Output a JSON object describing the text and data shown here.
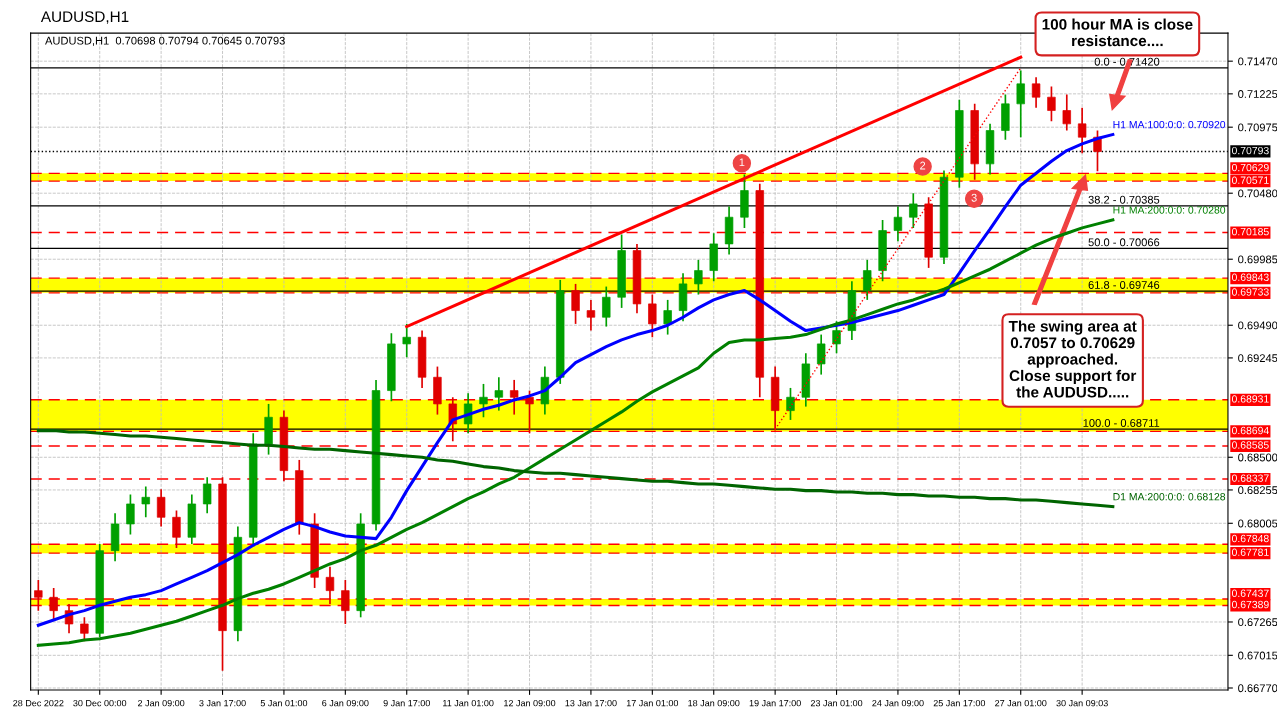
{
  "chart_data": {
    "type": "candlestick",
    "title": "AUDUSD,H1",
    "subtitle": "AUDUSD,H1  0.70698 0.70794 0.70645 0.70793",
    "categories": [
      "28 Dec 2022",
      null,
      null,
      null,
      "30 Dec 00:00",
      null,
      null,
      null,
      "2 Jan 09:00",
      null,
      null,
      null,
      "3 Jan 17:00",
      null,
      null,
      null,
      "5 Jan 01:00",
      null,
      null,
      null,
      "6 Jan 09:00",
      null,
      null,
      null,
      "9 Jan 17:00",
      null,
      null,
      null,
      "11 Jan 01:00",
      null,
      null,
      null,
      "12 Jan 09:00",
      null,
      null,
      null,
      "13 Jan 17:00",
      null,
      null,
      null,
      "17 Jan 01:00",
      null,
      null,
      null,
      "18 Jan 09:00",
      null,
      null,
      null,
      "19 Jan 17:00",
      null,
      null,
      null,
      "23 Jan 01:00",
      null,
      null,
      null,
      "24 Jan 09:00",
      null,
      null,
      null,
      "25 Jan 17:00",
      null,
      null,
      null,
      "27 Jan 01:00",
      null,
      null,
      null,
      "30 Jan 09:03",
      null,
      null,
      null,
      null,
      null,
      null,
      null,
      null,
      null
    ],
    "ohlc": [
      [
        0.675,
        0.6758,
        0.6735,
        0.6745
      ],
      [
        0.6745,
        0.6752,
        0.6728,
        0.6735
      ],
      [
        0.6735,
        0.674,
        0.6718,
        0.6725
      ],
      [
        0.6725,
        0.673,
        0.6712,
        0.6718
      ],
      [
        0.6718,
        0.6785,
        0.6715,
        0.678
      ],
      [
        0.678,
        0.6808,
        0.6772,
        0.68
      ],
      [
        0.68,
        0.6822,
        0.6792,
        0.6815
      ],
      [
        0.6815,
        0.6828,
        0.6805,
        0.682
      ],
      [
        0.682,
        0.6826,
        0.6798,
        0.6805
      ],
      [
        0.6805,
        0.681,
        0.6782,
        0.679
      ],
      [
        0.679,
        0.6822,
        0.6785,
        0.6815
      ],
      [
        0.6815,
        0.6835,
        0.6808,
        0.683
      ],
      [
        0.683,
        0.6835,
        0.669,
        0.672
      ],
      [
        0.672,
        0.6798,
        0.6712,
        0.679
      ],
      [
        0.679,
        0.6868,
        0.6785,
        0.686
      ],
      [
        0.686,
        0.689,
        0.6852,
        0.688
      ],
      [
        0.688,
        0.6885,
        0.6832,
        0.684
      ],
      [
        0.684,
        0.6848,
        0.6792,
        0.68
      ],
      [
        0.68,
        0.6808,
        0.6752,
        0.676
      ],
      [
        0.676,
        0.6768,
        0.674,
        0.675
      ],
      [
        0.675,
        0.6758,
        0.6725,
        0.6735
      ],
      [
        0.6735,
        0.6808,
        0.673,
        0.68
      ],
      [
        0.68,
        0.6908,
        0.6795,
        0.69
      ],
      [
        0.69,
        0.6943,
        0.6892,
        0.6935
      ],
      [
        0.6935,
        0.695,
        0.6925,
        0.694
      ],
      [
        0.694,
        0.6945,
        0.6902,
        0.691
      ],
      [
        0.691,
        0.6918,
        0.6882,
        0.689
      ],
      [
        0.689,
        0.6895,
        0.6862,
        0.6875
      ],
      [
        0.6875,
        0.6898,
        0.6868,
        0.689
      ],
      [
        0.689,
        0.6905,
        0.688,
        0.6895
      ],
      [
        0.6895,
        0.691,
        0.6885,
        0.69
      ],
      [
        0.69,
        0.6908,
        0.6882,
        0.6895
      ],
      [
        0.6895,
        0.69,
        0.6868,
        0.689
      ],
      [
        0.689,
        0.6918,
        0.6882,
        0.691
      ],
      [
        0.691,
        0.6983,
        0.6905,
        0.6975
      ],
      [
        0.6975,
        0.698,
        0.695,
        0.696
      ],
      [
        0.696,
        0.6968,
        0.6945,
        0.6955
      ],
      [
        0.6955,
        0.6978,
        0.6948,
        0.697
      ],
      [
        0.697,
        0.7017,
        0.6962,
        0.7005
      ],
      [
        0.7005,
        0.701,
        0.6958,
        0.6965
      ],
      [
        0.6965,
        0.6972,
        0.694,
        0.695
      ],
      [
        0.695,
        0.6968,
        0.6942,
        0.696
      ],
      [
        0.696,
        0.6988,
        0.6952,
        0.698
      ],
      [
        0.698,
        0.6998,
        0.6972,
        0.699
      ],
      [
        0.699,
        0.7018,
        0.6982,
        0.701
      ],
      [
        0.701,
        0.7038,
        0.7002,
        0.703
      ],
      [
        0.703,
        0.7062,
        0.7022,
        0.705
      ],
      [
        0.705,
        0.7055,
        0.6895,
        0.691
      ],
      [
        0.691,
        0.6918,
        0.687,
        0.6885
      ],
      [
        0.6885,
        0.6902,
        0.6878,
        0.6895
      ],
      [
        0.6895,
        0.6928,
        0.6888,
        0.692
      ],
      [
        0.692,
        0.6942,
        0.6912,
        0.6935
      ],
      [
        0.6935,
        0.6952,
        0.6928,
        0.6945
      ],
      [
        0.6945,
        0.6982,
        0.6938,
        0.6975
      ],
      [
        0.6975,
        0.6998,
        0.6968,
        0.699
      ],
      [
        0.699,
        0.7028,
        0.6982,
        0.702
      ],
      [
        0.702,
        0.7038,
        0.7012,
        0.703
      ],
      [
        0.703,
        0.7048,
        0.7022,
        0.704
      ],
      [
        0.704,
        0.7045,
        0.6992,
        0.7
      ],
      [
        0.7,
        0.7065,
        0.6995,
        0.706
      ],
      [
        0.706,
        0.7118,
        0.7052,
        0.711
      ],
      [
        0.711,
        0.7115,
        0.7058,
        0.707
      ],
      [
        0.707,
        0.71,
        0.7062,
        0.7095
      ],
      [
        0.7095,
        0.7122,
        0.7088,
        0.7115
      ],
      [
        0.7115,
        0.714,
        0.709,
        0.713
      ],
      [
        0.713,
        0.7135,
        0.7112,
        0.712
      ],
      [
        0.712,
        0.7128,
        0.7102,
        0.711
      ],
      [
        0.711,
        0.7122,
        0.7095,
        0.71
      ],
      [
        0.71,
        0.7112,
        0.7078,
        0.709
      ],
      [
        0.709,
        0.7095,
        0.70645,
        0.70793
      ],
      null,
      null,
      null,
      null,
      null,
      null,
      null,
      null
    ],
    "series": [
      {
        "name": "H1 MA:100:0:0: 0.70920",
        "type": "line",
        "color": "#0000ff",
        "values": [
          0.6724,
          0.6728,
          0.6732,
          0.6735,
          0.6739,
          0.6742,
          0.6745,
          0.6747,
          0.675,
          0.6755,
          0.676,
          0.6765,
          0.6771,
          0.6777,
          0.6784,
          0.679,
          0.6796,
          0.6801,
          0.6798,
          0.6794,
          0.6791,
          0.679,
          0.6789,
          0.6805,
          0.6825,
          0.6843,
          0.6861,
          0.6878,
          0.6882,
          0.6886,
          0.6889,
          0.6893,
          0.6896,
          0.69,
          0.691,
          0.6921,
          0.6927,
          0.6933,
          0.6938,
          0.6942,
          0.6945,
          0.6949,
          0.6955,
          0.6962,
          0.6968,
          0.6972,
          0.6975,
          0.6968,
          0.696,
          0.6952,
          0.6945,
          0.6947,
          0.6949,
          0.6951,
          0.6954,
          0.6957,
          0.696,
          0.6964,
          0.6968,
          0.6972,
          0.6988,
          0.7005,
          0.7021,
          0.7038,
          0.7054,
          0.7063,
          0.7072,
          0.708,
          0.7085,
          0.7089,
          0.7092,
          null,
          null,
          null,
          null,
          null,
          null,
          null
        ]
      },
      {
        "name": "H1 MA:200:0:0: 0.70280",
        "type": "line",
        "color": "#008000",
        "values": [
          0.6709,
          0.671,
          0.6711,
          0.6713,
          0.6714,
          0.6716,
          0.6718,
          0.6721,
          0.6724,
          0.6727,
          0.6731,
          0.6735,
          0.6739,
          0.6744,
          0.6748,
          0.6751,
          0.6755,
          0.676,
          0.6765,
          0.677,
          0.6774,
          0.678,
          0.6784,
          0.679,
          0.6796,
          0.6801,
          0.6807,
          0.6813,
          0.6819,
          0.6824,
          0.683,
          0.6835,
          0.6842,
          0.6849,
          0.6856,
          0.6863,
          0.687,
          0.6877,
          0.6884,
          0.6892,
          0.6899,
          0.6905,
          0.6911,
          0.6917,
          0.6928,
          0.6936,
          0.6938,
          0.6938,
          0.6939,
          0.694,
          0.6942,
          0.6946,
          0.695,
          0.6953,
          0.6957,
          0.6961,
          0.6965,
          0.6968,
          0.6972,
          0.6976,
          0.6981,
          0.6986,
          0.6991,
          0.6997,
          0.7003,
          0.7009,
          0.7014,
          0.7018,
          0.7022,
          0.7025,
          0.7028,
          null,
          null,
          null,
          null,
          null,
          null,
          null
        ]
      },
      {
        "name": "D1 MA:200:0:0: 0.68128",
        "type": "line",
        "color": "#006400",
        "values": [
          0.687,
          0.687,
          0.6869,
          0.6869,
          0.6868,
          0.6867,
          0.6866,
          0.6866,
          0.6865,
          0.6864,
          0.6863,
          0.6862,
          0.6861,
          0.686,
          0.6859,
          0.6859,
          0.6858,
          0.6857,
          0.6856,
          0.6856,
          0.6855,
          0.6854,
          0.6853,
          0.6852,
          0.6851,
          0.685,
          0.6848,
          0.6847,
          0.6845,
          0.6843,
          0.6842,
          0.684,
          0.6839,
          0.6838,
          0.6838,
          0.6837,
          0.6836,
          0.6835,
          0.6834,
          0.6833,
          0.6832,
          0.6832,
          0.6831,
          0.683,
          0.683,
          0.6829,
          0.6828,
          0.6827,
          0.6826,
          0.6826,
          0.6825,
          0.6825,
          0.6824,
          0.6824,
          0.6823,
          0.6823,
          0.6822,
          0.6822,
          0.6821,
          0.6821,
          0.682,
          0.682,
          0.6819,
          0.6819,
          0.6818,
          0.6818,
          0.6817,
          0.6816,
          0.6815,
          0.6814,
          0.6813,
          null,
          null,
          null,
          null,
          null,
          null,
          null
        ]
      },
      {
        "type": "line",
        "color": "#ff0000",
        "values": [
          null,
          null,
          null,
          null,
          null,
          null,
          null,
          null,
          null,
          null,
          null,
          null,
          null,
          null,
          null,
          null,
          null,
          null,
          null,
          null,
          null,
          null,
          null,
          null,
          0.6948,
          null,
          null,
          null,
          null,
          null,
          null,
          null,
          null,
          null,
          null,
          null,
          null,
          null,
          null,
          null,
          null,
          null,
          null,
          null,
          null,
          null,
          null,
          null,
          null,
          null,
          null,
          null,
          null,
          null,
          null,
          null,
          null,
          null,
          null,
          null,
          null,
          null,
          null,
          null,
          0.715,
          null,
          null,
          null,
          null,
          null,
          null,
          null,
          null,
          null,
          null,
          null,
          null,
          null
        ]
      },
      {
        "type": "line",
        "color": "#ff0000",
        "line_style": "dotted",
        "values": [
          null,
          null,
          null,
          null,
          null,
          null,
          null,
          null,
          null,
          null,
          null,
          null,
          null,
          null,
          null,
          null,
          null,
          null,
          null,
          null,
          null,
          null,
          null,
          null,
          null,
          null,
          null,
          null,
          null,
          null,
          null,
          null,
          null,
          null,
          null,
          null,
          null,
          null,
          null,
          null,
          null,
          null,
          null,
          null,
          null,
          null,
          null,
          null,
          0.6871,
          null,
          null,
          null,
          null,
          null,
          null,
          null,
          null,
          null,
          null,
          null,
          null,
          null,
          null,
          null,
          0.7142,
          null,
          null,
          null,
          null,
          null,
          null,
          null,
          null,
          null,
          null,
          null,
          null,
          null
        ]
      }
    ],
    "ylim": [
      0.66755,
      0.7168
    ],
    "yticks": [
      {
        "value": 0.7147,
        "label": "0.71470"
      },
      {
        "value": 0.71225,
        "label": "0.71225"
      },
      {
        "value": 0.70975,
        "label": "0.70975"
      },
      {
        "value": 0.7048,
        "label": "0.70480"
      },
      {
        "value": 0.69985,
        "label": "0.69985"
      },
      {
        "value": 0.6949,
        "label": "0.69490"
      },
      {
        "value": 0.69245,
        "label": "0.69245"
      },
      {
        "value": 0.685,
        "label": "0.68500"
      },
      {
        "value": 0.68255,
        "label": "0.68255"
      },
      {
        "value": 0.68005,
        "label": "0.68005"
      },
      {
        "value": 0.67265,
        "label": "0.67265"
      },
      {
        "value": 0.67015,
        "label": "0.67015"
      },
      {
        "value": 0.6677,
        "label": "0.66770"
      }
    ],
    "bands": [
      {
        "axis": "y",
        "from": 0.70571,
        "to": 0.70629,
        "color": "#ffff00"
      },
      {
        "axis": "y",
        "from": 0.69733,
        "to": 0.69843,
        "color": "#ffff00"
      },
      {
        "axis": "y",
        "from": 0.68694,
        "to": 0.68931,
        "color": "#ffff00"
      },
      {
        "axis": "y",
        "from": 0.67781,
        "to": 0.67848,
        "color": "#ffff00"
      },
      {
        "axis": "y",
        "from": 0.67389,
        "to": 0.67437,
        "color": "#ffff00"
      }
    ],
    "ref_lines": [
      {
        "axis": "y",
        "value": 0.70793,
        "label": "0.70793",
        "color": "#000000",
        "line_style": "dotted"
      },
      {
        "axis": "y",
        "value": 0.70629,
        "label": "0.70629",
        "color": "#ff0000",
        "line_style": "dashed"
      },
      {
        "axis": "y",
        "value": 0.70571,
        "label": "0.70571",
        "color": "#ff0000",
        "line_style": "dashed"
      },
      {
        "axis": "y",
        "value": 0.70185,
        "label": "0.70185",
        "color": "#ff0000",
        "line_style": "dashed"
      },
      {
        "axis": "y",
        "value": 0.69843,
        "label": "0.69843",
        "color": "#ff0000",
        "line_style": "dashed"
      },
      {
        "axis": "y",
        "value": 0.69733,
        "label": "0.69733",
        "color": "#ff0000",
        "line_style": "dashed"
      },
      {
        "axis": "y",
        "value": 0.68931,
        "label": "0.68931",
        "color": "#ff0000",
        "line_style": "dashed"
      },
      {
        "axis": "y",
        "value": 0.68694,
        "label": "0.68694",
        "color": "#ff0000",
        "line_style": "dashed"
      },
      {
        "axis": "y",
        "value": 0.68585,
        "label": "0.68585",
        "color": "#ff0000",
        "line_style": "dashed"
      },
      {
        "axis": "y",
        "value": 0.68337,
        "label": "0.68337",
        "color": "#ff0000",
        "line_style": "dashed"
      },
      {
        "axis": "y",
        "value": 0.67848,
        "label": "0.67848",
        "color": "#ff0000",
        "line_style": "dashed"
      },
      {
        "axis": "y",
        "value": 0.67781,
        "label": "0.67781",
        "color": "#ff0000",
        "line_style": "dashed"
      },
      {
        "axis": "y",
        "value": 0.67437,
        "label": "0.67437",
        "color": "#ff0000",
        "line_style": "dashed"
      },
      {
        "axis": "y",
        "value": 0.67389,
        "label": "0.67389",
        "color": "#ff0000",
        "line_style": "dashed"
      },
      {
        "axis": "y",
        "value": 0.7142,
        "color": "#000000",
        "line_style": "solid"
      },
      {
        "axis": "y",
        "value": 0.70385,
        "color": "#000000",
        "line_style": "solid"
      },
      {
        "axis": "y",
        "value": 0.70066,
        "color": "#000000",
        "line_style": "solid"
      },
      {
        "axis": "y",
        "value": 0.69746,
        "color": "#000000",
        "line_style": "solid"
      },
      {
        "axis": "y",
        "value": 0.68711,
        "color": "#000000",
        "line_style": "solid"
      }
    ],
    "annotations": [
      "100 hour MA is close\nresistance....",
      "The swing area at\n0.7057 to 0.70629\napproached.\nClose support for\nthe AUDUSD.....",
      "1",
      "2",
      "3",
      {
        "text": "0.0 - 0.71420",
        "y": 0.7142
      },
      {
        "text": "38.2 - 0.70385",
        "y": 0.70385
      },
      {
        "text": "50.0 - 0.70066",
        "y": 0.70066
      },
      {
        "text": "61.8 - 0.69746",
        "y": 0.69746
      },
      {
        "text": "100.0 - 0.68711",
        "y": 0.68711
      }
    ],
    "grid": true
  }
}
